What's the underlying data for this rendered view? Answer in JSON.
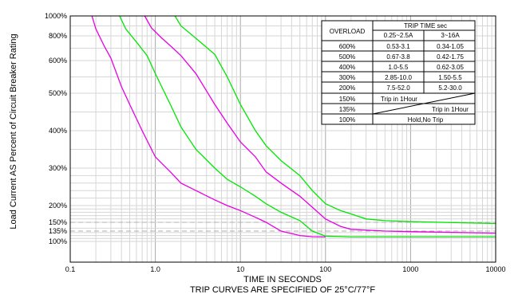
{
  "chart_data": {
    "type": "line",
    "title": "",
    "xlabel": "TIME IN SECONDS",
    "subtitle": "TRIP CURVES ARE SPECIFIED OF 25°C/77°F",
    "ylabel": "Load Current AS Percent of Circuit Breaker Rating",
    "x_scale": "log",
    "xlim": [
      0.1,
      10000
    ],
    "ylim": [
      90,
      1000
    ],
    "grid": true,
    "x_ticks": [
      "0.1",
      "1.0",
      "10",
      "100",
      "1000",
      "10000"
    ],
    "y_ticks": [
      {
        "value": 1000,
        "label": "1000%"
      },
      {
        "value": 800,
        "label": "800%"
      },
      {
        "value": 600,
        "label": "600%"
      },
      {
        "value": 500,
        "label": "500%"
      },
      {
        "value": 400,
        "label": "400%"
      },
      {
        "value": 300,
        "label": "300%"
      },
      {
        "value": 200,
        "label": "200%"
      },
      {
        "value": 150,
        "label": "150%"
      },
      {
        "value": 135,
        "label": "135%"
      },
      {
        "value": 100,
        "label": "100%"
      }
    ],
    "series": [
      {
        "color": "#e600e6",
        "points": [
          [
            0.18,
            1000
          ],
          [
            0.2,
            870
          ],
          [
            0.25,
            720
          ],
          [
            0.3,
            620
          ],
          [
            0.4,
            520
          ],
          [
            0.5,
            470
          ],
          [
            0.7,
            400
          ],
          [
            1.0,
            330
          ],
          [
            1.5,
            290
          ],
          [
            2.0,
            260
          ],
          [
            3.0,
            240
          ],
          [
            5.0,
            215
          ],
          [
            7.0,
            200
          ],
          [
            10,
            185
          ],
          [
            15,
            165
          ],
          [
            20,
            150
          ],
          [
            30,
            135
          ],
          [
            50,
            120
          ],
          [
            70,
            116
          ],
          [
            100,
            115
          ]
        ]
      },
      {
        "color": "#00e600",
        "points": [
          [
            0.38,
            1000
          ],
          [
            0.45,
            870
          ],
          [
            0.6,
            750
          ],
          [
            0.8,
            640
          ],
          [
            1.0,
            560
          ],
          [
            1.5,
            470
          ],
          [
            2.0,
            410
          ],
          [
            3.0,
            350
          ],
          [
            5.0,
            300
          ],
          [
            7.0,
            270
          ],
          [
            10,
            250
          ],
          [
            15,
            225
          ],
          [
            20,
            205
          ],
          [
            30,
            180
          ],
          [
            50,
            155
          ],
          [
            70,
            135
          ],
          [
            100,
            118
          ],
          [
            200,
            115
          ],
          [
            500,
            115
          ],
          [
            1000,
            115
          ],
          [
            10000,
            115
          ]
        ]
      },
      {
        "color": "#e600e6",
        "points": [
          [
            0.75,
            1000
          ],
          [
            0.9,
            880
          ],
          [
            1.2,
            780
          ],
          [
            1.5,
            720
          ],
          [
            2.0,
            640
          ],
          [
            3.0,
            560
          ],
          [
            5.0,
            470
          ],
          [
            7.0,
            420
          ],
          [
            10,
            370
          ],
          [
            15,
            330
          ],
          [
            20,
            290
          ],
          [
            30,
            260
          ],
          [
            50,
            225
          ],
          [
            70,
            195
          ],
          [
            100,
            160
          ],
          [
            150,
            143
          ],
          [
            200,
            138
          ],
          [
            500,
            135
          ],
          [
            1000,
            133
          ],
          [
            10000,
            128
          ]
        ]
      },
      {
        "color": "#00e600",
        "points": [
          [
            1.7,
            1000
          ],
          [
            2.0,
            900
          ],
          [
            3.0,
            780
          ],
          [
            5.0,
            650
          ],
          [
            7.0,
            550
          ],
          [
            10,
            470
          ],
          [
            15,
            400
          ],
          [
            20,
            360
          ],
          [
            30,
            320
          ],
          [
            50,
            280
          ],
          [
            70,
            240
          ],
          [
            100,
            205
          ],
          [
            150,
            185
          ],
          [
            200,
            175
          ],
          [
            300,
            160
          ],
          [
            500,
            155
          ],
          [
            1000,
            152
          ],
          [
            10000,
            148
          ]
        ]
      }
    ],
    "dashed_reference_levels": [
      150,
      135
    ],
    "table": {
      "header_overload": "OVERLOAD",
      "header_trip": "TRIP TIME sec",
      "subheaders": [
        "0.25~2.5A",
        "3~16A"
      ],
      "rows": [
        {
          "overload": "600%",
          "a": "0.53-3.1",
          "b": "0.34-1.05"
        },
        {
          "overload": "500%",
          "a": "0.67-3.8",
          "b": "0.42-1.75"
        },
        {
          "overload": "400%",
          "a": "1.0-5.5",
          "b": "0.62-3.05"
        },
        {
          "overload": "300%",
          "a": "2.85-10.0",
          "b": "1.50-5.5"
        },
        {
          "overload": "200%",
          "a": "7.5-52.0",
          "b": "5.2-30.0"
        }
      ],
      "row_150": {
        "overload": "150%",
        "text": "Trip in 1Hour"
      },
      "row_135": {
        "overload": "135%",
        "text": "Trip in 1Hour"
      },
      "row_100": {
        "overload": "100%",
        "text": "Hold,No Trip"
      }
    }
  }
}
